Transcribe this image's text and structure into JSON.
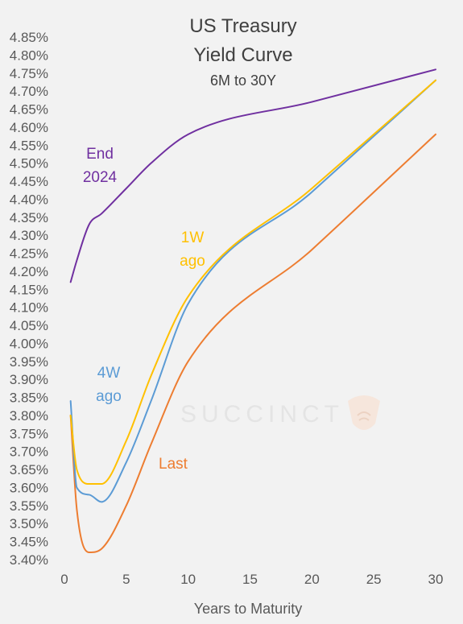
{
  "chart_data": {
    "type": "line",
    "title_lines": [
      "US Treasury",
      "Yield Curve"
    ],
    "subtitle": "6M to 30Y",
    "xlabel": "Years to Maturity",
    "ylabel": "",
    "xlim": [
      0,
      30
    ],
    "ylim": [
      3.4,
      4.85
    ],
    "x_ticks": [
      0,
      5,
      10,
      15,
      20,
      25,
      30
    ],
    "y_ticks": [
      3.4,
      3.45,
      3.5,
      3.55,
      3.6,
      3.65,
      3.7,
      3.75,
      3.8,
      3.85,
      3.9,
      3.95,
      4.0,
      4.05,
      4.1,
      4.15,
      4.2,
      4.25,
      4.3,
      4.35,
      4.4,
      4.45,
      4.5,
      4.55,
      4.6,
      4.65,
      4.7,
      4.75,
      4.8,
      4.85
    ],
    "y_tick_format": "percent_2dp",
    "grid": false,
    "legend": "inline labels",
    "watermark": "SUCCINCT",
    "series": [
      {
        "name": "End 2024",
        "color": "#7030a0",
        "label_lines": [
          "End",
          "2024"
        ],
        "x": [
          0.5,
          1,
          2,
          3,
          5,
          7,
          10,
          20,
          30
        ],
        "y": [
          4.17,
          4.23,
          4.33,
          4.36,
          4.43,
          4.5,
          4.58,
          4.67,
          4.76
        ]
      },
      {
        "name": "1W ago",
        "color": "#ffc000",
        "label_lines": [
          "1W",
          "ago"
        ],
        "x": [
          0.5,
          1,
          2,
          3,
          5,
          7,
          10,
          20,
          30
        ],
        "y": [
          3.8,
          3.65,
          3.61,
          3.61,
          3.73,
          3.91,
          4.13,
          4.43,
          4.73
        ]
      },
      {
        "name": "4W ago",
        "color": "#5b9bd5",
        "label_lines": [
          "4W",
          "ago"
        ],
        "x": [
          0.5,
          1,
          2,
          3,
          5,
          7,
          10,
          20,
          30
        ],
        "y": [
          3.84,
          3.6,
          3.58,
          3.56,
          3.67,
          3.84,
          4.11,
          4.42,
          4.73
        ]
      },
      {
        "name": "Last",
        "color": "#ed7d31",
        "label_lines": [
          "Last"
        ],
        "x": [
          0.5,
          1,
          2,
          3,
          5,
          7,
          10,
          20,
          30
        ],
        "y": [
          3.8,
          3.54,
          3.42,
          3.43,
          3.55,
          3.72,
          3.95,
          4.26,
          4.58
        ]
      }
    ]
  }
}
